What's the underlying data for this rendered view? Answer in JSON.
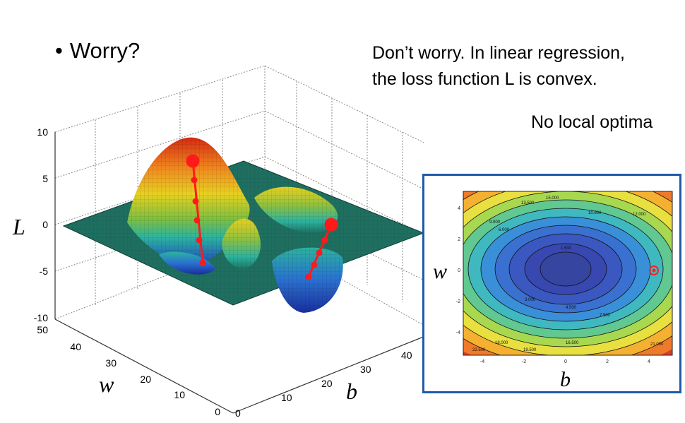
{
  "slide": {
    "bullet_symbol": "•",
    "question": "Worry?",
    "answer_line1": "Don’t worry. In linear regression,",
    "answer_line2": "the loss function L is convex.",
    "answer_line3": "No local optima"
  },
  "surface_plot": {
    "z_axis_label": "L",
    "w_axis_label": "w",
    "b_axis_label": "b",
    "z_ticks": [
      "10",
      "5",
      "0",
      "-5",
      "-10"
    ],
    "w_ticks": [
      "50",
      "40",
      "30",
      "20",
      "10",
      "0"
    ],
    "b_ticks": [
      "0",
      "10",
      "20",
      "30",
      "40"
    ],
    "colors": {
      "surface_low": "#1f4fbf",
      "surface_mid": "#2bb3a0",
      "surface_high": "#e8d020",
      "surface_peak": "#d62a10",
      "plane": "#1f6f60",
      "path": "#ff1a1a"
    }
  },
  "contour_plot": {
    "w_axis_label": "w",
    "b_axis_label": "b",
    "x_ticks": [
      "-4",
      "-2",
      "0",
      "2",
      "4"
    ],
    "y_ticks": [
      "4",
      "2",
      "0",
      "-2",
      "-4"
    ],
    "contour_labels": [
      "1.500",
      "3.000",
      "4.500",
      "6.000",
      "7.500",
      "9.000",
      "10.500",
      "12.000",
      "13.500",
      "15.000",
      "16.500",
      "18.000",
      "19.500",
      "21.000",
      "22.500"
    ],
    "colors": {
      "border": "#1e5aa8",
      "marker": "#ff2020"
    }
  }
}
